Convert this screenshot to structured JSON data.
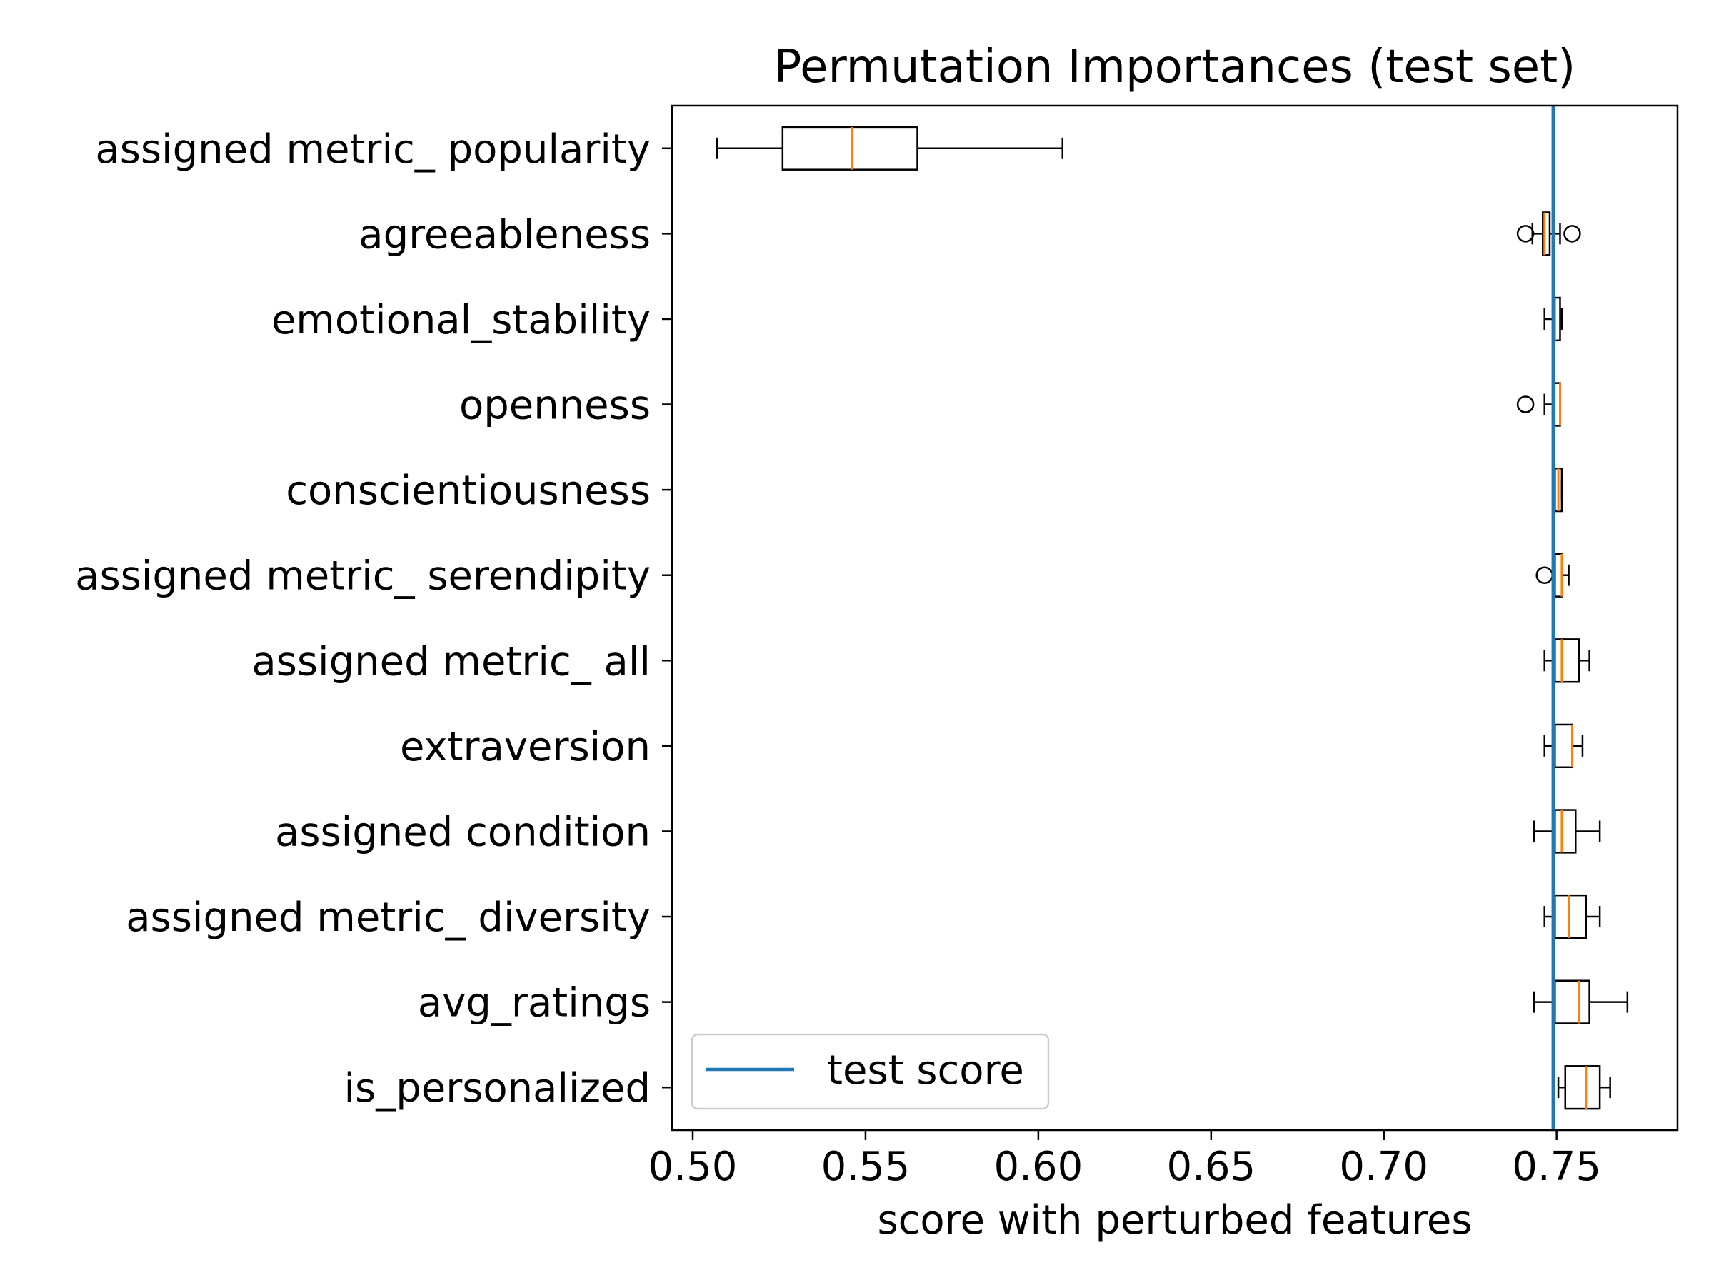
{
  "chart_data": {
    "type": "box",
    "orientation": "horizontal",
    "title": "Permutation Importances (test set)",
    "xlabel": "score with perturbed features",
    "ylabel": "",
    "xlim": [
      0.494,
      0.785
    ],
    "xticks": [
      0.5,
      0.55,
      0.6,
      0.65,
      0.7,
      0.75
    ],
    "xtick_labels": [
      "0.50",
      "0.55",
      "0.60",
      "0.65",
      "0.70",
      "0.75"
    ],
    "grid": false,
    "reference_line": {
      "name": "test score",
      "value": 0.749,
      "color": "#1f77b4"
    },
    "legend": {
      "position": "lower-left",
      "entries": [
        "test score"
      ]
    },
    "box_color": "#000000",
    "median_color": "#ff7f0e",
    "features": [
      {
        "name": "assigned metric_ popularity",
        "whisker_low": 0.507,
        "q1": 0.526,
        "median": 0.546,
        "q3": 0.565,
        "whisker_high": 0.607,
        "outliers": []
      },
      {
        "name": "agreeableness",
        "whisker_low": 0.743,
        "q1": 0.746,
        "median": 0.7465,
        "q3": 0.748,
        "whisker_high": 0.751,
        "outliers": [
          0.741,
          0.7545
        ]
      },
      {
        "name": "emotional_stability",
        "whisker_low": 0.7465,
        "q1": 0.749,
        "median": 0.7495,
        "q3": 0.751,
        "whisker_high": 0.7515,
        "outliers": []
      },
      {
        "name": "openness",
        "whisker_low": 0.7465,
        "q1": 0.749,
        "median": 0.751,
        "q3": 0.751,
        "whisker_high": 0.751,
        "outliers": [
          0.741
        ]
      },
      {
        "name": "conscientiousness",
        "whisker_low": 0.7495,
        "q1": 0.7495,
        "median": 0.7505,
        "q3": 0.7515,
        "whisker_high": 0.7515,
        "outliers": []
      },
      {
        "name": "assigned metric_ serendipity",
        "whisker_low": 0.7495,
        "q1": 0.7495,
        "median": 0.7515,
        "q3": 0.7515,
        "whisker_high": 0.7535,
        "outliers": [
          0.7465
        ]
      },
      {
        "name": "assigned metric_ all",
        "whisker_low": 0.7465,
        "q1": 0.7495,
        "median": 0.7515,
        "q3": 0.7565,
        "whisker_high": 0.7595,
        "outliers": []
      },
      {
        "name": "extraversion",
        "whisker_low": 0.7465,
        "q1": 0.7495,
        "median": 0.7545,
        "q3": 0.7545,
        "whisker_high": 0.7575,
        "outliers": []
      },
      {
        "name": "assigned condition",
        "whisker_low": 0.7435,
        "q1": 0.7495,
        "median": 0.7515,
        "q3": 0.7555,
        "whisker_high": 0.7625,
        "outliers": []
      },
      {
        "name": "assigned metric_ diversity",
        "whisker_low": 0.7465,
        "q1": 0.7495,
        "median": 0.7535,
        "q3": 0.7585,
        "whisker_high": 0.7625,
        "outliers": []
      },
      {
        "name": "avg_ratings",
        "whisker_low": 0.7435,
        "q1": 0.7495,
        "median": 0.7565,
        "q3": 0.7595,
        "whisker_high": 0.7705,
        "outliers": []
      },
      {
        "name": "is_personalized",
        "whisker_low": 0.7505,
        "q1": 0.7525,
        "median": 0.7585,
        "q3": 0.7625,
        "whisker_high": 0.7655,
        "outliers": []
      }
    ]
  }
}
